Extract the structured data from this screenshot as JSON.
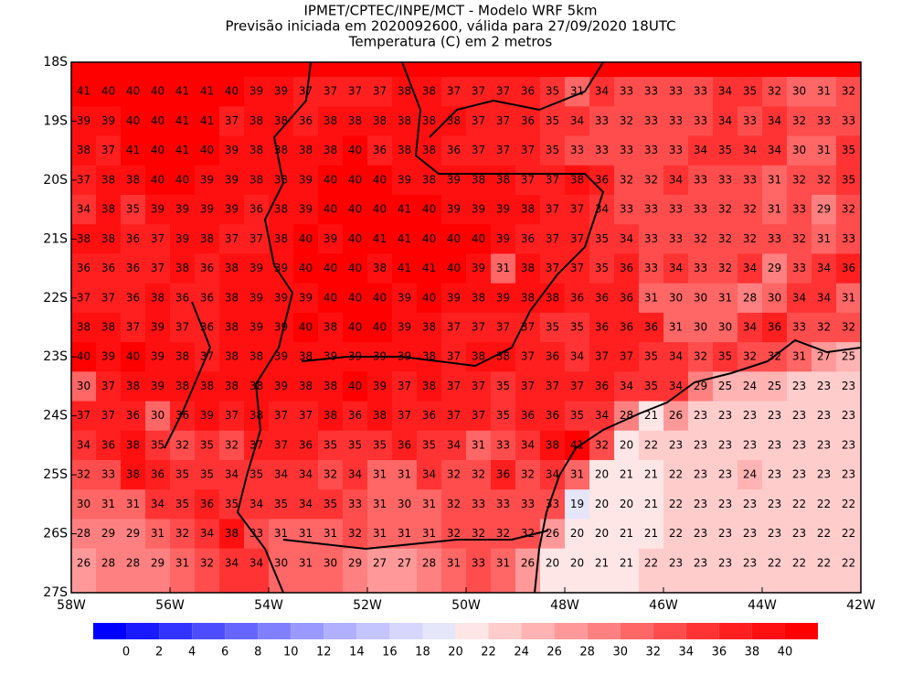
{
  "header": {
    "title": "IPMET/CPTEC/INPE/MCT - Modelo WRF 5km",
    "subtitle": "Previsão iniciada em 2020092600, válida para 27/09/2020 18UTC",
    "field": "Temperatura (C) em 2 metros"
  },
  "map": {
    "lon_range": [
      -58,
      -42
    ],
    "lat_range": [
      -18,
      -27
    ],
    "lon_ticks": [
      {
        "value": -58,
        "label": "58W"
      },
      {
        "value": -56,
        "label": "56W"
      },
      {
        "value": -54,
        "label": "54W"
      },
      {
        "value": -52,
        "label": "52W"
      },
      {
        "value": -50,
        "label": "50W"
      },
      {
        "value": -48,
        "label": "48W"
      },
      {
        "value": -46,
        "label": "46W"
      },
      {
        "value": -44,
        "label": "44W"
      },
      {
        "value": -42,
        "label": "42W"
      }
    ],
    "lat_ticks": [
      {
        "value": -18,
        "label": "18S"
      },
      {
        "value": -19,
        "label": "19S"
      },
      {
        "value": -20,
        "label": "20S"
      },
      {
        "value": -21,
        "label": "21S"
      },
      {
        "value": -22,
        "label": "22S"
      },
      {
        "value": -23,
        "label": "23S"
      },
      {
        "value": -24,
        "label": "24S"
      },
      {
        "value": -25,
        "label": "25S"
      },
      {
        "value": -26,
        "label": "26S"
      },
      {
        "value": -27,
        "label": "27S"
      }
    ],
    "grid_lats": [
      -18.5,
      -19,
      -19.5,
      -20,
      -20.5,
      -21,
      -21.5,
      -22,
      -22.5,
      -23,
      -23.5,
      -24,
      -24.5,
      -25,
      -25.5,
      -26,
      -26.5
    ],
    "rows": [
      [
        41,
        40,
        40,
        40,
        41,
        41,
        40,
        39,
        39,
        37,
        37,
        37,
        37,
        38,
        38,
        37,
        37,
        37,
        36,
        35,
        31,
        34,
        33,
        33,
        33,
        33,
        34,
        35,
        32,
        30,
        31,
        32
      ],
      [
        39,
        39,
        40,
        40,
        41,
        41,
        37,
        38,
        38,
        36,
        38,
        38,
        38,
        38,
        38,
        38,
        37,
        37,
        36,
        35,
        34,
        33,
        32,
        33,
        33,
        33,
        34,
        33,
        34,
        32,
        33,
        33
      ],
      [
        38,
        37,
        41,
        40,
        41,
        40,
        39,
        38,
        38,
        38,
        38,
        40,
        36,
        38,
        38,
        36,
        37,
        37,
        37,
        35,
        33,
        33,
        33,
        33,
        33,
        34,
        35,
        34,
        34,
        30,
        31,
        35
      ],
      [
        37,
        38,
        38,
        40,
        40,
        39,
        39,
        38,
        38,
        39,
        40,
        40,
        40,
        39,
        38,
        39,
        38,
        38,
        37,
        37,
        38,
        36,
        32,
        32,
        34,
        33,
        33,
        33,
        31,
        32,
        32,
        35
      ],
      [
        34,
        38,
        35,
        39,
        39,
        39,
        39,
        36,
        38,
        39,
        40,
        40,
        40,
        41,
        40,
        39,
        39,
        39,
        38,
        37,
        37,
        34,
        33,
        33,
        33,
        33,
        32,
        32,
        31,
        33,
        29,
        32
      ],
      [
        38,
        38,
        36,
        37,
        39,
        38,
        37,
        37,
        38,
        40,
        39,
        40,
        41,
        41,
        40,
        40,
        40,
        39,
        36,
        37,
        37,
        35,
        34,
        33,
        33,
        32,
        32,
        32,
        33,
        32,
        31,
        33
      ],
      [
        36,
        36,
        36,
        37,
        38,
        36,
        38,
        39,
        39,
        40,
        40,
        40,
        38,
        41,
        41,
        40,
        39,
        31,
        38,
        37,
        37,
        35,
        36,
        33,
        34,
        33,
        32,
        34,
        29,
        33,
        34,
        36
      ],
      [
        37,
        37,
        36,
        38,
        36,
        36,
        38,
        39,
        39,
        39,
        40,
        40,
        40,
        39,
        40,
        39,
        38,
        39,
        38,
        38,
        36,
        36,
        36,
        31,
        30,
        30,
        31,
        28,
        30,
        34,
        34,
        31
      ],
      [
        38,
        38,
        37,
        39,
        37,
        36,
        38,
        39,
        39,
        40,
        38,
        40,
        40,
        39,
        38,
        37,
        37,
        37,
        37,
        35,
        35,
        36,
        36,
        36,
        31,
        30,
        30,
        34,
        36,
        33,
        32,
        32
      ],
      [
        40,
        39,
        40,
        39,
        38,
        37,
        38,
        38,
        39,
        38,
        39,
        39,
        39,
        39,
        38,
        37,
        38,
        38,
        37,
        36,
        34,
        37,
        37,
        35,
        34,
        32,
        35,
        32,
        32,
        31,
        27,
        25
      ],
      [
        30,
        37,
        38,
        39,
        38,
        38,
        38,
        38,
        39,
        38,
        38,
        40,
        39,
        37,
        38,
        37,
        37,
        35,
        37,
        37,
        37,
        36,
        34,
        35,
        34,
        29,
        25,
        24,
        25,
        23,
        23,
        23
      ],
      [
        37,
        37,
        36,
        30,
        36,
        39,
        37,
        38,
        37,
        37,
        38,
        36,
        38,
        37,
        36,
        37,
        37,
        35,
        36,
        36,
        35,
        34,
        28,
        21,
        26,
        23,
        23,
        23,
        23,
        23,
        23,
        23
      ],
      [
        34,
        36,
        38,
        35,
        32,
        35,
        32,
        37,
        37,
        36,
        35,
        35,
        35,
        36,
        35,
        34,
        31,
        33,
        34,
        38,
        41,
        32,
        20,
        22,
        23,
        23,
        23,
        23,
        23,
        23,
        23,
        23
      ],
      [
        32,
        33,
        38,
        36,
        35,
        35,
        34,
        35,
        34,
        34,
        32,
        34,
        31,
        31,
        34,
        32,
        32,
        36,
        32,
        34,
        31,
        20,
        21,
        21,
        22,
        23,
        23,
        24,
        23,
        23,
        23,
        23
      ],
      [
        30,
        31,
        31,
        34,
        35,
        36,
        35,
        34,
        35,
        34,
        35,
        33,
        31,
        30,
        31,
        32,
        33,
        33,
        33,
        33,
        19,
        20,
        20,
        21,
        22,
        23,
        23,
        23,
        23,
        22,
        22,
        22
      ],
      [
        28,
        29,
        29,
        31,
        32,
        34,
        38,
        33,
        31,
        31,
        31,
        32,
        31,
        31,
        31,
        32,
        32,
        32,
        32,
        26,
        20,
        20,
        21,
        21,
        22,
        23,
        23,
        23,
        23,
        23,
        22,
        22
      ],
      [
        26,
        28,
        28,
        29,
        31,
        32,
        34,
        34,
        30,
        31,
        30,
        29,
        27,
        27,
        28,
        31,
        33,
        31,
        26,
        20,
        20,
        21,
        21,
        22,
        23,
        23,
        23,
        23,
        22,
        22,
        22,
        22
      ]
    ]
  },
  "colorbar": {
    "levels": [
      0,
      2,
      4,
      6,
      8,
      10,
      12,
      14,
      16,
      18,
      20,
      22,
      24,
      26,
      28,
      30,
      32,
      34,
      36,
      38,
      40
    ],
    "colors": [
      "#0000ff",
      "#1a1aff",
      "#3333ff",
      "#4d4dff",
      "#6666ff",
      "#8080ff",
      "#9999ff",
      "#b0b0ff",
      "#c4c4ff",
      "#d6d6ff",
      "#e6e6fa",
      "#ffe6e6",
      "#ffcccc",
      "#ffb3b3",
      "#ff9999",
      "#ff8080",
      "#ff6666",
      "#ff4d4d",
      "#ff3333",
      "#ff1f1f",
      "#ff1010",
      "#ff0000"
    ]
  }
}
